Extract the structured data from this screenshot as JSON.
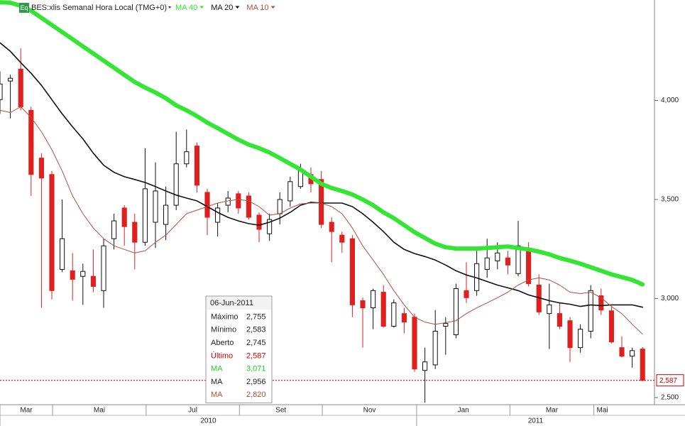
{
  "chart_data": {
    "type": "candlestick",
    "icon": "Eq",
    "title": "BES:xlis Semanal Hora Local (TMG+0)",
    "up_color": "#ffffff",
    "down_color": "#e0201e",
    "open": [
      4004,
      4098,
      4158,
      3950,
      3709,
      3626,
      3147,
      3140,
      3112,
      3112,
      3040,
      3302,
      3457,
      3385,
      3284,
      3385,
      3374,
      3471,
      3680,
      3770,
      3536,
      3385,
      3471,
      3529,
      3518,
      3421,
      3327,
      3428,
      3493,
      3565,
      3626,
      3601,
      3385,
      3320,
      3302,
      2989,
      2953,
      3032,
      2860,
      2924,
      2906,
      2637,
      2665,
      2860,
      2817,
      3040,
      3040,
      3147,
      3190,
      3205,
      3126,
      3241,
      3068,
      2924,
      2924,
      2888,
      2752,
      2835,
      3014,
      2938,
      2752,
      2709,
      2745
    ],
    "high": [
      4147,
      4130,
      4263,
      3968,
      3734,
      3644,
      3500,
      3230,
      3176,
      3248,
      3302,
      3428,
      3471,
      3428,
      3759,
      3687,
      3565,
      3842,
      3853,
      3788,
      3554,
      3482,
      3543,
      3543,
      3536,
      3435,
      3428,
      3536,
      3615,
      3680,
      3662,
      3644,
      3410,
      3338,
      3320,
      3004,
      3050,
      3068,
      2996,
      2953,
      2924,
      2752,
      2942,
      2906,
      3075,
      3183,
      3241,
      3302,
      3284,
      3241,
      3392,
      3284,
      3122,
      3075,
      2978,
      2906,
      2870,
      3068,
      3050,
      2960,
      2809,
      2752,
      2755
    ],
    "low": [
      3932,
      3910,
      3950,
      3518,
      2953,
      2996,
      3133,
      2989,
      2968,
      3032,
      2953,
      3248,
      3266,
      3147,
      3266,
      3255,
      3295,
      3446,
      3662,
      3536,
      3320,
      3313,
      3435,
      3428,
      3399,
      3284,
      3291,
      3374,
      3464,
      3554,
      3536,
      3356,
      3183,
      3230,
      2906,
      2752,
      2845,
      2853,
      2853,
      2824,
      2630,
      2475,
      2644,
      2716,
      2799,
      2978,
      3014,
      3104,
      3147,
      3122,
      3112,
      3061,
      2917,
      2745,
      2845,
      2680,
      2727,
      2799,
      2917,
      2773,
      2702,
      2651,
      2583
    ],
    "close": [
      4083,
      4112,
      3968,
      3626,
      3608,
      3040,
      3302,
      3097,
      3137,
      3061,
      3266,
      3392,
      3363,
      3284,
      3554,
      3543,
      3471,
      3680,
      3741,
      3572,
      3410,
      3457,
      3507,
      3457,
      3410,
      3349,
      3399,
      3500,
      3590,
      3644,
      3579,
      3374,
      3338,
      3284,
      2968,
      2953,
      3040,
      2860,
      2978,
      2881,
      2644,
      2680,
      2835,
      2874,
      3050,
      3004,
      3176,
      3205,
      3230,
      3169,
      3266,
      3075,
      2932,
      2968,
      2860,
      2752,
      2845,
      3040,
      2942,
      2781,
      2709,
      2737,
      2587
    ],
    "series": [
      {
        "name": "MA 40",
        "color": "#33e633",
        "width": 6,
        "values": [
          4496,
          4493,
          4478,
          4453,
          4417,
          4381,
          4345,
          4309,
          4273,
          4237,
          4201,
          4165,
          4129,
          4093,
          4065,
          4040,
          4011,
          3975,
          3950,
          3921,
          3888,
          3860,
          3831,
          3802,
          3777,
          3759,
          3737,
          3709,
          3680,
          3651,
          3615,
          3579,
          3558,
          3543,
          3525,
          3500,
          3471,
          3435,
          3406,
          3370,
          3335,
          3306,
          3277,
          3259,
          3252,
          3252,
          3252,
          3255,
          3259,
          3263,
          3255,
          3248,
          3237,
          3223,
          3205,
          3191,
          3176,
          3158,
          3140,
          3122,
          3108,
          3094,
          3071
        ]
      },
      {
        "name": "MA 20",
        "color": "#111111",
        "width": 1.6,
        "values": [
          4291,
          4248,
          4191,
          4137,
          4076,
          4004,
          3932,
          3867,
          3806,
          3734,
          3673,
          3637,
          3615,
          3601,
          3586,
          3565,
          3543,
          3522,
          3507,
          3493,
          3464,
          3435,
          3410,
          3392,
          3378,
          3370,
          3385,
          3406,
          3435,
          3471,
          3486,
          3482,
          3482,
          3482,
          3464,
          3428,
          3385,
          3338,
          3284,
          3248,
          3227,
          3212,
          3194,
          3169,
          3140,
          3119,
          3104,
          3086,
          3068,
          3054,
          3040,
          3018,
          3004,
          2989,
          2978,
          2971,
          2960,
          2968,
          2964,
          2968,
          2968,
          2968,
          2956
        ]
      },
      {
        "name": "MA 10",
        "color": "#b0503c",
        "width": 1,
        "values": [
          3950,
          3939,
          3968,
          3914,
          3842,
          3752,
          3644,
          3518,
          3428,
          3356,
          3302,
          3266,
          3248,
          3230,
          3241,
          3284,
          3320,
          3374,
          3428,
          3446,
          3464,
          3482,
          3493,
          3500,
          3493,
          3464,
          3421,
          3428,
          3457,
          3478,
          3482,
          3482,
          3464,
          3428,
          3356,
          3266,
          3194,
          3122,
          3040,
          2968,
          2906,
          2881,
          2870,
          2878,
          2888,
          2924,
          2953,
          2978,
          3004,
          3032,
          3068,
          3094,
          3104,
          3094,
          3068,
          3032,
          3025,
          3032,
          3004,
          2960,
          2924,
          2870,
          2820
        ]
      }
    ],
    "xlim": [
      0,
      63.15
    ],
    "ylim": [
      2464,
      4507
    ],
    "yticks": [
      {
        "value": 2500,
        "label": "2,500"
      },
      {
        "value": 3000,
        "label": "3,000"
      },
      {
        "value": 3500,
        "label": "3,500"
      },
      {
        "value": 4000,
        "label": "4,000"
      }
    ],
    "xticks": [
      {
        "value": 0,
        "label": "Mar"
      },
      {
        "value": 5.07,
        "label": "Mai"
      },
      {
        "value": 14.1,
        "label": "Jul"
      },
      {
        "value": 23.1,
        "label": "Set"
      },
      {
        "value": 31.1,
        "label": "Nov"
      },
      {
        "value": 40.2,
        "label": "Jan"
      },
      {
        "value": 49.2,
        "label": "Mar"
      },
      {
        "value": 57.3,
        "label": "Mai"
      }
    ],
    "year_ticks": [
      {
        "value": 0,
        "label": "2010"
      },
      {
        "value": 40.2,
        "label": "2011"
      }
    ],
    "last_price": {
      "value": 2587,
      "label": "2,587",
      "color": "#cc0000"
    },
    "tooltip": {
      "date": "06-Jun-2011",
      "rows": [
        {
          "label": "Máximo",
          "value": "2,755",
          "color": "#222222"
        },
        {
          "label": "Mínimo",
          "value": "2,583",
          "color": "#222222"
        },
        {
          "label": "Aberto",
          "value": "2,745",
          "color": "#222222"
        },
        {
          "label": "Último",
          "value": "2,587",
          "color": "#cc0000"
        },
        {
          "label": "MA",
          "value": "3,071",
          "color": "#22cc22"
        },
        {
          "label": "MA",
          "value": "2,956",
          "color": "#222222"
        },
        {
          "label": "MA",
          "value": "2,820",
          "color": "#b0503c"
        }
      ]
    }
  }
}
